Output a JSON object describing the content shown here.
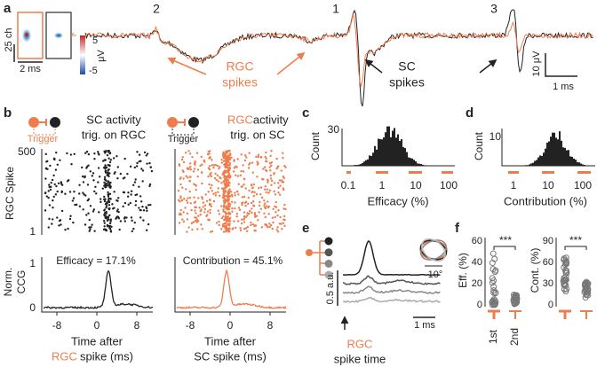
{
  "a": {
    "label": "a",
    "scale_ch": "25 ch",
    "scale_ms": "2 ms",
    "cbar_max": "5",
    "cbar_min": "-5",
    "cbar_unit": "μV",
    "peaks": [
      "2",
      "1",
      "3"
    ],
    "rgc_spikes": [
      "RGC",
      "spikes"
    ],
    "sc_spikes": [
      "SC",
      "spikes"
    ],
    "scale_uv": "10 μV",
    "scale_time": "1 ms"
  },
  "b": {
    "label": "b",
    "left_title": [
      "SC activity",
      "trig. on RGC"
    ],
    "right_title": [
      "RGC activity",
      "trig. on SC"
    ],
    "right_title_highlight": "RGC",
    "trigger": "Trigger",
    "raster_ylabel": "RGC Spike",
    "raster_yticks": [
      "500",
      "1"
    ],
    "ccg_ylabel": [
      "Norm.",
      "CCG"
    ],
    "ccg_yticks": [
      "1",
      "0"
    ],
    "efficacy": "Efficacy = 17.1%",
    "contribution": "Contribution = 45.1%",
    "xticks": [
      "-8",
      "0",
      "8"
    ],
    "left_xlabel": [
      "Time after",
      "RGC",
      "spike (ms)"
    ],
    "right_xlabel": [
      "Time after",
      "SC spike (ms)"
    ]
  },
  "c": {
    "label": "c",
    "ylabel": "Count",
    "yticks": [
      "30"
    ],
    "xticks": [
      "0.1",
      "1",
      "10",
      "100"
    ],
    "xlabel": "Efficacy (%)"
  },
  "d": {
    "label": "d",
    "ylabel": "Count",
    "yticks": [
      "10"
    ],
    "xticks": [
      "1",
      "10",
      "100"
    ],
    "xlabel": "Contribution (%)"
  },
  "e": {
    "label": "e",
    "scale_au": "0.5 a.u.",
    "scale_time": "1 ms",
    "inset_scale": "10°",
    "arrow_label": [
      "RGC",
      "spike time"
    ]
  },
  "f": {
    "label": "f",
    "left_ylabel": "Eff. (%)",
    "left_yticks": [
      "60",
      "40",
      "20",
      "0"
    ],
    "right_ylabel": "Cont. (%)",
    "right_yticks": [
      "90",
      "60",
      "30",
      "0"
    ],
    "significance": "***",
    "xlabels": [
      "1st",
      "2nd"
    ]
  }
}
